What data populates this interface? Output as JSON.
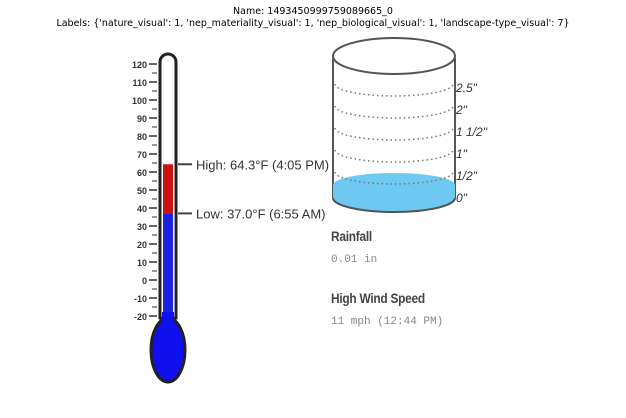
{
  "header": {
    "name_line": "Name: 1493450999759089665_0",
    "labels_line": "Labels: {'nature_visual': 1, 'nep_materiality_visual': 1, 'nep_biological_visual': 1, 'landscape-type_visual': 7}"
  },
  "thermometer": {
    "ticks": [
      "120",
      "110",
      "100",
      "90",
      "80",
      "70",
      "60",
      "50",
      "40",
      "30",
      "20",
      "10",
      "0",
      "-10",
      "-20"
    ],
    "scale_min": -20,
    "scale_max": 120,
    "high_value": 64.3,
    "low_value": 37.0,
    "high_label": "High: 64.3°F (4:05 PM)",
    "low_label": "Low: 37.0°F (6:55 AM)",
    "colors": {
      "high_fill": "#cc1111",
      "low_fill": "#1a22e0",
      "bulb": "#1010ee",
      "outline": "#222222"
    }
  },
  "rain_gauge": {
    "scale_labels": [
      "2.5\"",
      "2\"",
      "1 1/2\"",
      "1\"",
      "1/2\"",
      "0\""
    ],
    "water_color": "#6ec9f2"
  },
  "rainfall": {
    "label": "Rainfall",
    "value": "0.01 in"
  },
  "wind": {
    "label": "High Wind Speed",
    "value": "11 mph (12:44 PM)"
  }
}
